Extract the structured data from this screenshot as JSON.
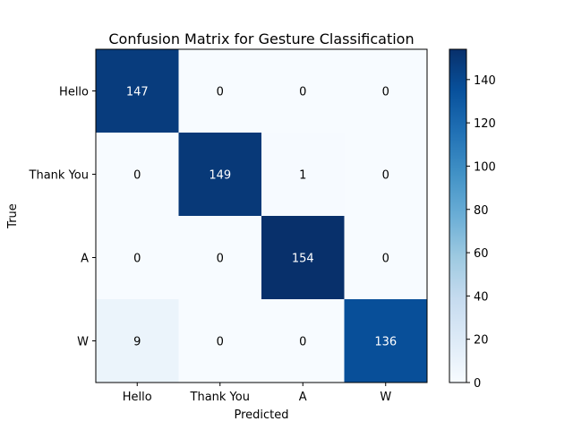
{
  "chart_data": {
    "type": "heatmap",
    "title": "Confusion Matrix for Gesture Classification",
    "xlabel": "Predicted",
    "ylabel": "True",
    "x_categories": [
      "Hello",
      "Thank You",
      "A",
      "W"
    ],
    "y_categories": [
      "Hello",
      "Thank You",
      "A",
      "W"
    ],
    "values": [
      [
        147,
        0,
        0,
        0
      ],
      [
        0,
        149,
        1,
        0
      ],
      [
        0,
        0,
        154,
        0
      ],
      [
        9,
        0,
        0,
        136
      ]
    ],
    "colormap": "Blues",
    "color_range": [
      0,
      154
    ],
    "colorbar_ticks": [
      0,
      20,
      40,
      60,
      80,
      100,
      120,
      140
    ],
    "grid": false,
    "legend": "colorbar-right"
  }
}
